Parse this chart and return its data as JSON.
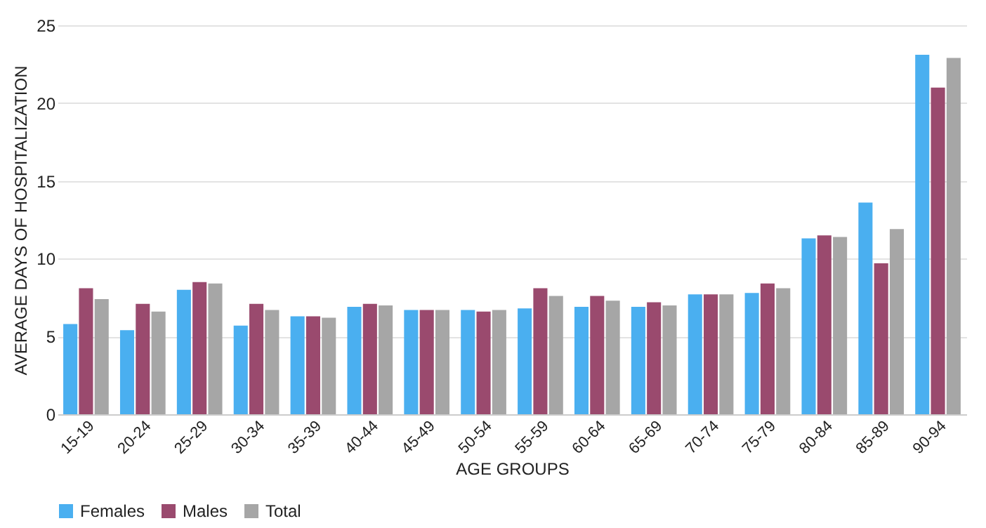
{
  "chart_data": {
    "type": "bar",
    "xlabel": "AGE GROUPS",
    "ylabel": "AVERAGE DAYS OF HOSPITALIZATION",
    "categories": [
      "15-19",
      "20-24",
      "25-29",
      "30-34",
      "35-39",
      "40-44",
      "45-49",
      "50-54",
      "55-59",
      "60-64",
      "65-69",
      "70-74",
      "75-79",
      "80-84",
      "85-89",
      "90-94"
    ],
    "series": [
      {
        "name": "Females",
        "color": "#4aaff0",
        "values": [
          5.8,
          5.4,
          8.0,
          5.7,
          6.3,
          6.9,
          6.7,
          6.7,
          6.8,
          6.9,
          6.9,
          7.7,
          7.8,
          11.3,
          13.6,
          23.1
        ]
      },
      {
        "name": "Males",
        "color": "#9a4a6e",
        "values": [
          8.1,
          7.1,
          8.5,
          7.1,
          6.3,
          7.1,
          6.7,
          6.6,
          8.1,
          7.6,
          7.2,
          7.7,
          8.4,
          11.5,
          9.7,
          21.0
        ]
      },
      {
        "name": "Total",
        "color": "#a6a6a6",
        "values": [
          7.4,
          6.6,
          8.4,
          6.7,
          6.2,
          7.0,
          6.7,
          6.7,
          7.6,
          7.3,
          7.0,
          7.7,
          8.1,
          11.4,
          11.9,
          22.9
        ]
      }
    ],
    "ylim": [
      0,
      25
    ],
    "yticks": [
      0,
      5,
      10,
      15,
      20,
      25
    ],
    "grid": "y",
    "legend": "bottom"
  }
}
